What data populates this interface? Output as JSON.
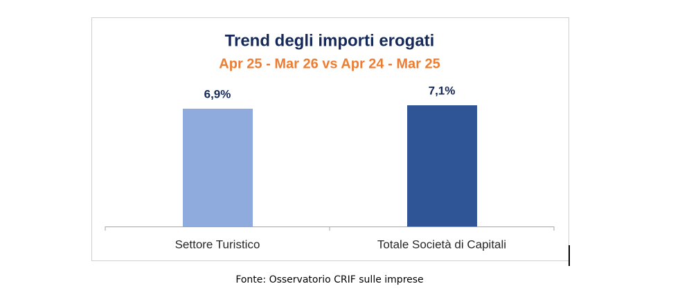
{
  "chart_data": {
    "type": "bar",
    "title": "Trend degli importi erogati",
    "subtitle": "Apr 25 - Mar 26 vs Apr 24 - Mar 25",
    "categories": [
      "Settore Turistico",
      "Totale Società di Capitali"
    ],
    "values": [
      6.9,
      7.1
    ],
    "value_labels": [
      "6,9%",
      "7,1%"
    ],
    "colors": [
      "#8faadc",
      "#2f5597"
    ],
    "source": "Fonte: Osservatorio CRIF sulle imprese"
  }
}
